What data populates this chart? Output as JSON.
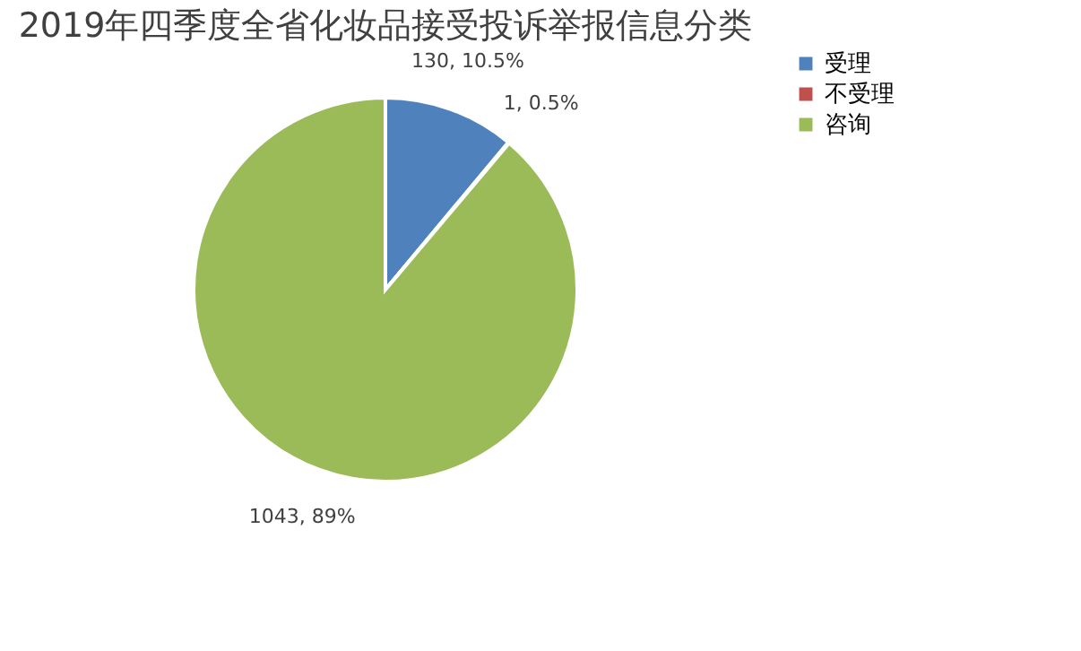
{
  "chart_data": {
    "type": "pie",
    "title": "2019年四季度全省化妆品接受投诉举报信息分类",
    "categories": [
      "受理",
      "不受理",
      "咨询"
    ],
    "values": [
      130,
      1,
      1043
    ],
    "colors": [
      "#4f81bd",
      "#c0504d",
      "#9bbb59"
    ],
    "value_labels": [
      "130, 10.5%",
      "1, 0.5%",
      "1043, 89%"
    ],
    "legend": "right"
  }
}
